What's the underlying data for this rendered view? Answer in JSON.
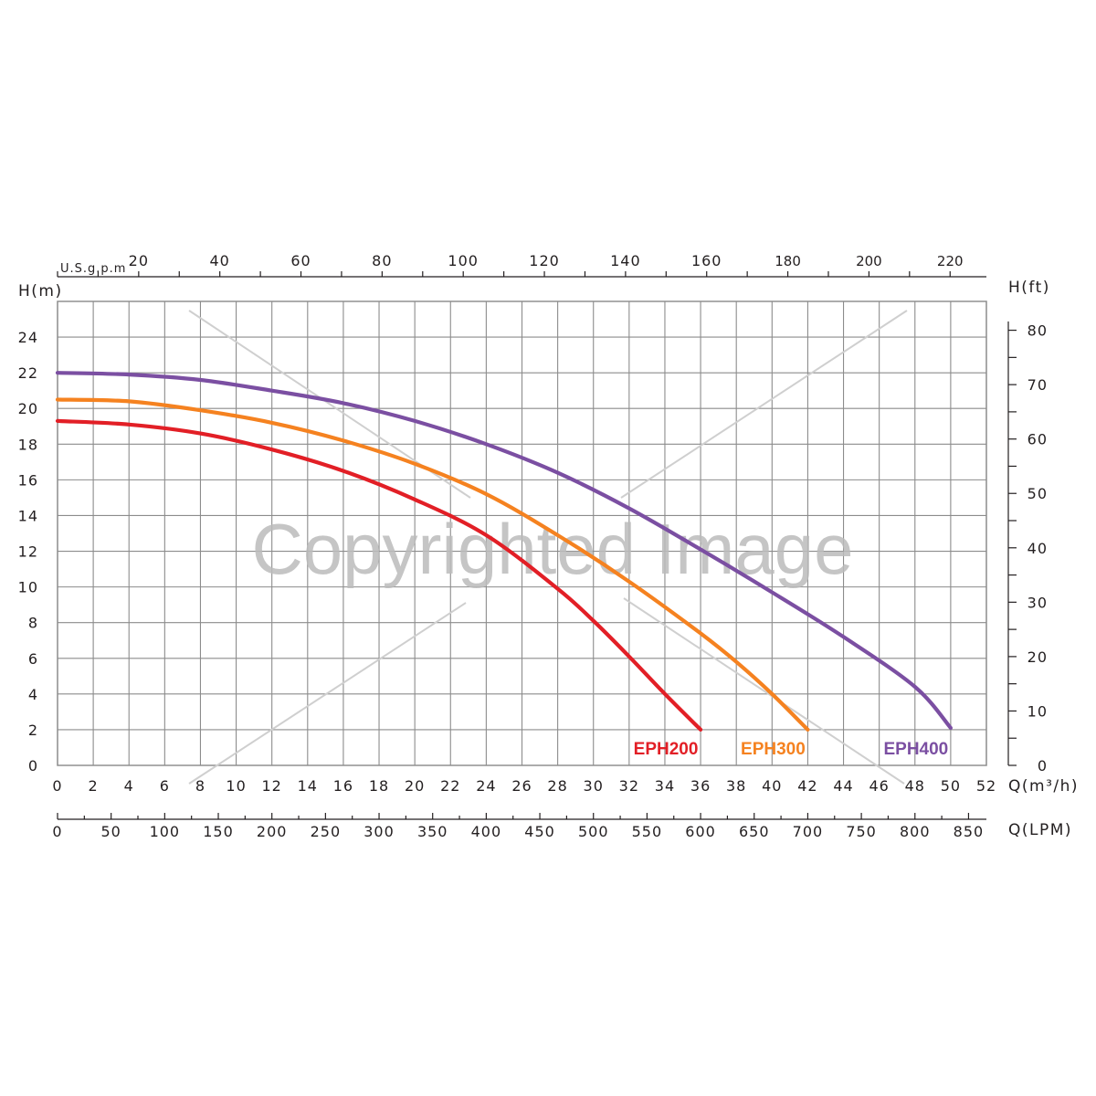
{
  "watermark": "Copyrighted Image",
  "chart_data": {
    "type": "line",
    "title": "",
    "xlabel": "Q(m³/h)",
    "ylabel": "H(m)",
    "xlim": [
      0,
      52
    ],
    "ylim": [
      0,
      26
    ],
    "x_ticks": [
      0,
      2,
      4,
      6,
      8,
      10,
      12,
      14,
      16,
      18,
      20,
      22,
      24,
      26,
      28,
      30,
      32,
      34,
      36,
      38,
      40,
      42,
      44,
      46,
      48,
      50,
      52
    ],
    "y_ticks": [
      0,
      2,
      4,
      6,
      8,
      10,
      12,
      14,
      16,
      18,
      20,
      22,
      24
    ],
    "grid": true,
    "secondary_x_top": {
      "label": "U.S.g.p.m",
      "ticks": [
        20,
        40,
        60,
        80,
        100,
        120,
        140,
        160,
        180,
        200,
        220
      ],
      "ticks_small_from": 180
    },
    "secondary_x_bottom": {
      "label": "Q(LPM)",
      "ticks": [
        0,
        50,
        100,
        150,
        200,
        250,
        300,
        350,
        400,
        450,
        500,
        550,
        600,
        650,
        700,
        750,
        800,
        850
      ]
    },
    "secondary_y_right": {
      "label": "H(ft)",
      "ticks": [
        0,
        10,
        20,
        30,
        40,
        50,
        60,
        70,
        80
      ]
    },
    "series": [
      {
        "name": "EPH200",
        "color": "#e21f26",
        "points": [
          [
            0,
            19.3
          ],
          [
            4,
            19.1
          ],
          [
            8,
            18.6
          ],
          [
            12,
            17.7
          ],
          [
            16,
            16.5
          ],
          [
            20,
            14.9
          ],
          [
            24,
            12.9
          ],
          [
            28,
            9.9
          ],
          [
            30,
            8.1
          ],
          [
            32,
            6.1
          ],
          [
            34,
            4.0
          ],
          [
            36,
            2.0
          ]
        ]
      },
      {
        "name": "EPH300",
        "color": "#f58220",
        "points": [
          [
            0,
            20.5
          ],
          [
            4,
            20.4
          ],
          [
            8,
            19.9
          ],
          [
            12,
            19.2
          ],
          [
            16,
            18.2
          ],
          [
            20,
            16.9
          ],
          [
            24,
            15.2
          ],
          [
            28,
            12.9
          ],
          [
            32,
            10.3
          ],
          [
            36,
            7.4
          ],
          [
            38,
            5.8
          ],
          [
            40,
            4.0
          ],
          [
            42,
            2.0
          ]
        ]
      },
      {
        "name": "EPH400",
        "color": "#7b4fa2",
        "points": [
          [
            0,
            22.0
          ],
          [
            4,
            21.9
          ],
          [
            8,
            21.6
          ],
          [
            12,
            21.0
          ],
          [
            16,
            20.3
          ],
          [
            20,
            19.3
          ],
          [
            24,
            18.0
          ],
          [
            28,
            16.4
          ],
          [
            32,
            14.4
          ],
          [
            36,
            12.1
          ],
          [
            40,
            9.7
          ],
          [
            44,
            7.2
          ],
          [
            48,
            4.4
          ],
          [
            50,
            2.1
          ]
        ]
      }
    ]
  }
}
